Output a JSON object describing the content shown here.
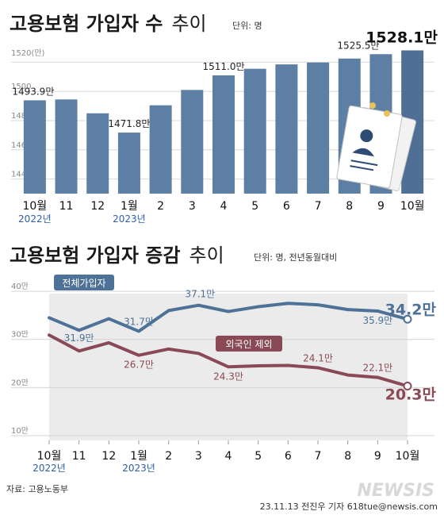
{
  "chart_data": [
    {
      "type": "bar",
      "title": "고용보험 가입자 수",
      "title_suffix": "추이",
      "unit": "단위: 명",
      "ylabel": "(만)",
      "yticks": [
        1440,
        1460,
        1480,
        1500,
        1520
      ],
      "ylim": [
        1430,
        1530
      ],
      "categories": [
        "10월",
        "11",
        "12",
        "1월",
        "2",
        "3",
        "4",
        "5",
        "6",
        "7",
        "8",
        "9",
        "10월"
      ],
      "year_labels": [
        {
          "index": 0,
          "text": "2022년"
        },
        {
          "index": 3,
          "text": "2023년"
        }
      ],
      "values": [
        1493.9,
        1494.5,
        1485.0,
        1471.8,
        1490.5,
        1501.0,
        1511.0,
        1515.5,
        1518.5,
        1519.8,
        1522.5,
        1525.5,
        1528.1
      ],
      "data_labels": [
        {
          "index": 0,
          "text": "1493.9만"
        },
        {
          "index": 3,
          "text": "1471.8만"
        },
        {
          "index": 6,
          "text": "1511.0만"
        },
        {
          "index": 11,
          "text": "1525.5만"
        },
        {
          "index": 12,
          "text": "1528.1만"
        }
      ],
      "colors": {
        "bar": "#5d7fa3",
        "bar_highlight": "#4f6f95"
      }
    },
    {
      "type": "line",
      "title": "고용보험 가입자 증감",
      "title_suffix": "추이",
      "unit": "단위: 명, 전년동월대비",
      "yticks": [
        {
          "value": 10,
          "label": "10만"
        },
        {
          "value": 20,
          "label": "20만"
        },
        {
          "value": 30,
          "label": "30만"
        },
        {
          "value": 40,
          "label": "40만"
        }
      ],
      "ylim": [
        9,
        42
      ],
      "categories": [
        "10월",
        "11",
        "12",
        "1월",
        "2",
        "3",
        "4",
        "5",
        "6",
        "7",
        "8",
        "9",
        "10월"
      ],
      "year_labels": [
        {
          "index": 0,
          "text": "2022년"
        },
        {
          "index": 3,
          "text": "2023년"
        }
      ],
      "series": [
        {
          "name": "전체가입자",
          "color": "#4d7197",
          "values": [
            34.5,
            31.9,
            34.3,
            31.7,
            36.0,
            37.1,
            35.8,
            36.8,
            37.5,
            37.2,
            36.2,
            35.9,
            34.2
          ],
          "data_labels": [
            {
              "index": 1,
              "text": "31.9만"
            },
            {
              "index": 3,
              "text": "31.7만"
            },
            {
              "index": 5,
              "text": "37.1만"
            },
            {
              "index": 11,
              "text": "35.9만"
            },
            {
              "index": 12,
              "text": "34.2만"
            }
          ]
        },
        {
          "name": "외국인 제외",
          "color": "#8a4a55",
          "values": [
            30.9,
            27.6,
            29.3,
            26.7,
            28.0,
            27.1,
            24.3,
            24.5,
            24.6,
            24.1,
            22.6,
            22.1,
            20.3
          ],
          "data_labels": [
            {
              "index": 3,
              "text": "26.7만"
            },
            {
              "index": 6,
              "text": "24.3만"
            },
            {
              "index": 9,
              "text": "24.1만"
            },
            {
              "index": 11,
              "text": "22.1만"
            },
            {
              "index": 12,
              "text": "20.3만"
            }
          ]
        }
      ]
    }
  ],
  "footer": {
    "source": "자료: 고용노동부",
    "credit": "23.11.13 전진우 기자 618tue@newsis.com",
    "brand": "NEWSIS"
  }
}
